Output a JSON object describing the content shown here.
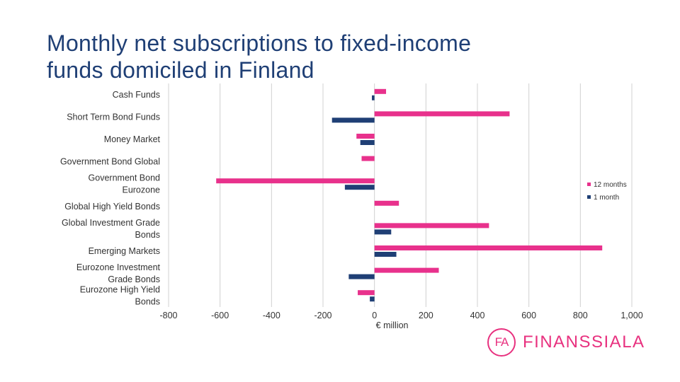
{
  "slide": {
    "title_line1": "Monthly net subscriptions to fixed-income",
    "title_line2": "funds domiciled in Finland"
  },
  "colors": {
    "series_12_months": "#e8318c",
    "series_1_month": "#1f3f75",
    "gridline": "#d0d0d0",
    "title": "#1f3f75",
    "brand": "#e8317f"
  },
  "chart_data": {
    "type": "bar",
    "orientation": "horizontal",
    "title": "Monthly net subscriptions to fixed-income funds domiciled in Finland",
    "xlabel": "€ million",
    "ylabel": "",
    "xlim": [
      -800,
      1000
    ],
    "xticks": [
      -800,
      -600,
      -400,
      -200,
      0,
      200,
      400,
      600,
      800,
      1000
    ],
    "xtick_labels": [
      "-800",
      "-600",
      "-400",
      "-200",
      "0",
      "200",
      "400",
      "600",
      "800",
      "1,000"
    ],
    "grid": true,
    "legend_position": "right",
    "categories": [
      [
        "Cash Funds"
      ],
      [
        "Short Term Bond Funds"
      ],
      [
        "Money Market"
      ],
      [
        "Government Bond Global"
      ],
      [
        "Government Bond",
        "Eurozone"
      ],
      [
        "Global High Yield Bonds"
      ],
      [
        "Global Investment Grade",
        "Bonds"
      ],
      [
        "Emerging Markets"
      ],
      [
        "Eurozone Investment",
        "Grade Bonds"
      ],
      [
        "Eurozone High Yield",
        "Bonds"
      ]
    ],
    "series": [
      {
        "name": "12 months",
        "values": [
          45,
          525,
          -70,
          -50,
          -615,
          95,
          445,
          885,
          250,
          -65
        ]
      },
      {
        "name": "1 month",
        "values": [
          -10,
          -165,
          -55,
          0,
          -115,
          0,
          65,
          85,
          -100,
          -18
        ]
      }
    ]
  },
  "logo": {
    "mark": "FA",
    "text": "FINANSSIALA"
  }
}
